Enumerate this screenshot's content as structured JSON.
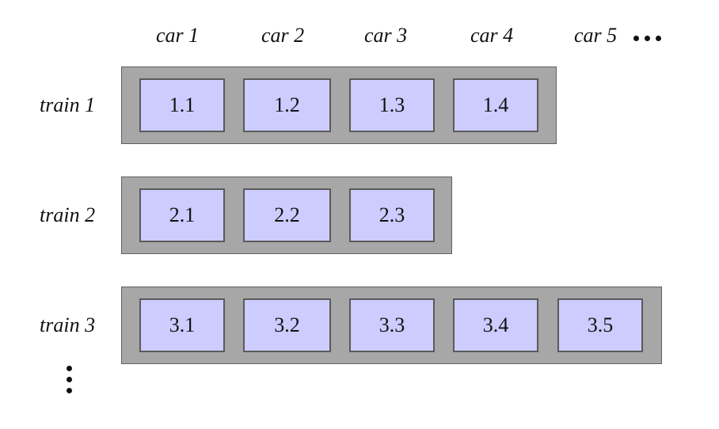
{
  "columns": [
    "car 1",
    "car 2",
    "car 3",
    "car 4",
    "car 5"
  ],
  "trains": [
    {
      "label": "train 1",
      "cars": [
        "1.1",
        "1.2",
        "1.3",
        "1.4"
      ]
    },
    {
      "label": "train 2",
      "cars": [
        "2.1",
        "2.2",
        "2.3"
      ]
    },
    {
      "label": "train 3",
      "cars": [
        "3.1",
        "3.2",
        "3.3",
        "3.4",
        "3.5"
      ]
    }
  ],
  "colors": {
    "car_fill": "#ccccff",
    "train_fill": "#a7a7a7",
    "text": "#111111"
  },
  "continuation": {
    "horizontal_icon": "ellipsis-horizontal-icon",
    "vertical_icon": "ellipsis-vertical-icon"
  }
}
